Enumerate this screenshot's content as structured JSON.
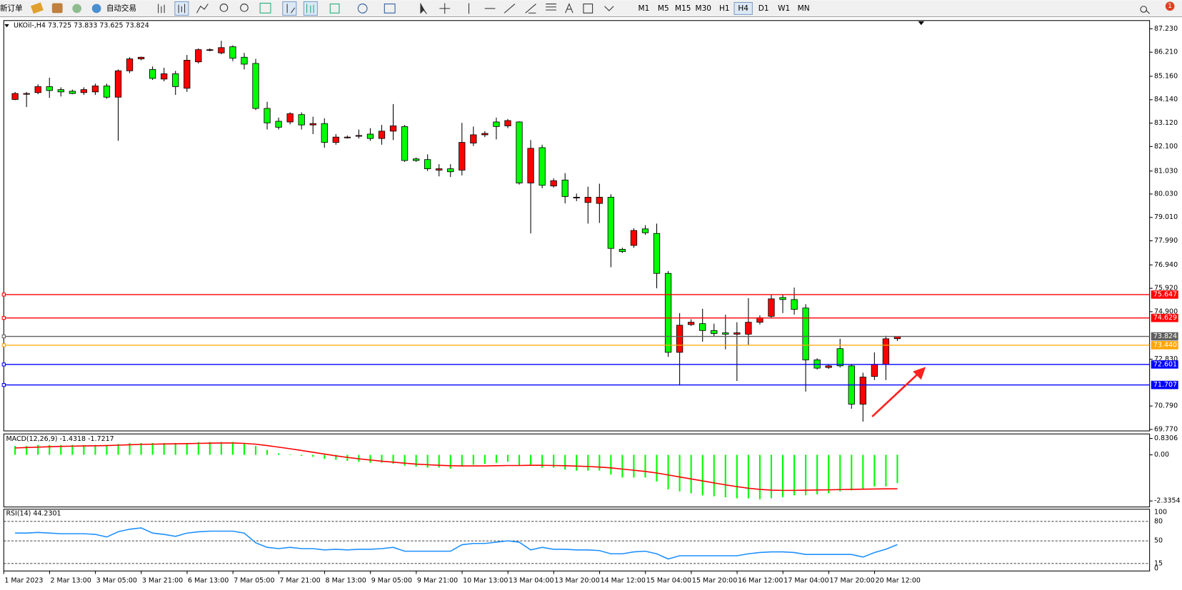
{
  "toolbar": {
    "new_order": "新订单",
    "auto_trading": "自动交易",
    "timeframes": [
      "M1",
      "M5",
      "M15",
      "M30",
      "H1",
      "H4",
      "D1",
      "W1",
      "MN"
    ],
    "active_timeframe": "H4",
    "notifications": "1"
  },
  "chart": {
    "title": "UKOil-,H4 73.725 73.833 73.625 73.824",
    "ylim": [
      69.77,
      87.23
    ],
    "yticks": [
      {
        "value": 87.23,
        "label": "87.230"
      },
      {
        "value": 86.21,
        "label": "86.210"
      },
      {
        "value": 85.16,
        "label": "85.160"
      },
      {
        "value": 84.14,
        "label": "84.140"
      },
      {
        "value": 83.12,
        "label": "83.120"
      },
      {
        "value": 82.1,
        "label": "82.100"
      },
      {
        "value": 81.03,
        "label": "81.030"
      },
      {
        "value": 80.03,
        "label": "80.030"
      },
      {
        "value": 79.01,
        "label": "79.010"
      },
      {
        "value": 77.99,
        "label": "77.990"
      },
      {
        "value": 76.94,
        "label": "76.940"
      },
      {
        "value": 75.92,
        "label": "75.920"
      },
      {
        "value": 74.9,
        "label": "74.900"
      },
      {
        "value": 72.83,
        "label": "72.830"
      },
      {
        "value": 70.79,
        "label": "70.790"
      },
      {
        "value": 69.77,
        "label": "69.770"
      }
    ],
    "x_labels": [
      "1 Mar 2023",
      "2 Mar 13:00",
      "3 Mar 05:00",
      "3 Mar 21:00",
      "6 Mar 13:00",
      "7 Mar 05:00",
      "7 Mar 21:00",
      "8 Mar 13:00",
      "9 Mar 05:00",
      "9 Mar 21:00",
      "10 Mar 13:00",
      "13 Mar 04:00",
      "13 Mar 20:00",
      "14 Mar 12:00",
      "15 Mar 04:00",
      "15 Mar 20:00",
      "16 Mar 12:00",
      "17 Mar 04:00",
      "17 Mar 20:00",
      "20 Mar 12:00"
    ],
    "up_color": "#ff0000",
    "down_color": "#00ff00",
    "candles": [
      {
        "open": 84.15,
        "high": 84.48,
        "low": 84.12,
        "close": 84.41
      },
      {
        "open": 84.41,
        "high": 84.48,
        "low": 83.82,
        "close": 84.41
      },
      {
        "open": 84.45,
        "high": 84.81,
        "low": 84.38,
        "close": 84.71
      },
      {
        "open": 84.71,
        "high": 85.1,
        "low": 84.22,
        "close": 84.54
      },
      {
        "open": 84.58,
        "high": 84.68,
        "low": 84.28,
        "close": 84.48
      },
      {
        "open": 84.51,
        "high": 84.58,
        "low": 84.38,
        "close": 84.41
      },
      {
        "open": 84.45,
        "high": 84.68,
        "low": 84.35,
        "close": 84.58
      },
      {
        "open": 84.48,
        "high": 84.84,
        "low": 84.35,
        "close": 84.74
      },
      {
        "open": 84.74,
        "high": 84.84,
        "low": 84.18,
        "close": 84.25
      },
      {
        "open": 84.25,
        "high": 85.46,
        "low": 82.35,
        "close": 85.4
      },
      {
        "open": 85.4,
        "high": 85.99,
        "low": 85.3,
        "close": 85.92
      },
      {
        "open": 85.92,
        "high": 86.02,
        "low": 85.86,
        "close": 85.99
      },
      {
        "open": 85.46,
        "high": 85.59,
        "low": 85.0,
        "close": 85.07
      },
      {
        "open": 85.04,
        "high": 85.53,
        "low": 84.94,
        "close": 85.27
      },
      {
        "open": 85.27,
        "high": 85.4,
        "low": 84.35,
        "close": 84.71
      },
      {
        "open": 84.64,
        "high": 86.09,
        "low": 84.48,
        "close": 85.86
      },
      {
        "open": 85.79,
        "high": 86.38,
        "low": 85.72,
        "close": 86.32
      },
      {
        "open": 86.32,
        "high": 86.38,
        "low": 86.25,
        "close": 86.32
      },
      {
        "open": 86.18,
        "high": 86.71,
        "low": 86.12,
        "close": 86.41
      },
      {
        "open": 86.45,
        "high": 86.51,
        "low": 85.82,
        "close": 85.95
      },
      {
        "open": 85.99,
        "high": 86.18,
        "low": 85.46,
        "close": 85.69
      },
      {
        "open": 85.72,
        "high": 85.92,
        "low": 83.69,
        "close": 83.76
      },
      {
        "open": 83.76,
        "high": 84.05,
        "low": 82.84,
        "close": 83.13
      },
      {
        "open": 83.2,
        "high": 83.36,
        "low": 82.84,
        "close": 82.94
      },
      {
        "open": 83.17,
        "high": 83.59,
        "low": 83.07,
        "close": 83.53
      },
      {
        "open": 83.49,
        "high": 83.59,
        "low": 82.84,
        "close": 83.04
      },
      {
        "open": 83.04,
        "high": 83.4,
        "low": 82.64,
        "close": 83.1
      },
      {
        "open": 83.1,
        "high": 83.33,
        "low": 82.05,
        "close": 82.28
      },
      {
        "open": 82.28,
        "high": 82.64,
        "low": 82.18,
        "close": 82.51
      },
      {
        "open": 82.51,
        "high": 82.58,
        "low": 82.45,
        "close": 82.51
      },
      {
        "open": 82.58,
        "high": 82.84,
        "low": 82.45,
        "close": 82.58
      },
      {
        "open": 82.64,
        "high": 82.9,
        "low": 82.35,
        "close": 82.45
      },
      {
        "open": 82.45,
        "high": 83.04,
        "low": 82.18,
        "close": 82.77
      },
      {
        "open": 82.77,
        "high": 83.95,
        "low": 82.38,
        "close": 83.0
      },
      {
        "open": 82.97,
        "high": 83.04,
        "low": 81.43,
        "close": 81.49
      },
      {
        "open": 81.56,
        "high": 81.62,
        "low": 81.43,
        "close": 81.49
      },
      {
        "open": 81.53,
        "high": 81.76,
        "low": 81.03,
        "close": 81.13
      },
      {
        "open": 81.07,
        "high": 81.33,
        "low": 80.8,
        "close": 81.13
      },
      {
        "open": 81.13,
        "high": 81.33,
        "low": 80.77,
        "close": 81.0
      },
      {
        "open": 81.07,
        "high": 83.13,
        "low": 80.84,
        "close": 82.28
      },
      {
        "open": 82.25,
        "high": 82.97,
        "low": 82.12,
        "close": 82.61
      },
      {
        "open": 82.61,
        "high": 82.77,
        "low": 82.51,
        "close": 82.67
      },
      {
        "open": 83.17,
        "high": 83.36,
        "low": 82.41,
        "close": 82.97
      },
      {
        "open": 83.0,
        "high": 83.3,
        "low": 82.9,
        "close": 83.23
      },
      {
        "open": 83.17,
        "high": 83.2,
        "low": 80.44,
        "close": 80.51
      },
      {
        "open": 80.51,
        "high": 82.38,
        "low": 78.31,
        "close": 82.02
      },
      {
        "open": 82.05,
        "high": 82.18,
        "low": 80.28,
        "close": 80.41
      },
      {
        "open": 80.38,
        "high": 80.71,
        "low": 80.31,
        "close": 80.61
      },
      {
        "open": 80.64,
        "high": 80.94,
        "low": 79.62,
        "close": 79.92
      },
      {
        "open": 79.89,
        "high": 80.05,
        "low": 79.72,
        "close": 79.89
      },
      {
        "open": 79.66,
        "high": 80.35,
        "low": 78.74,
        "close": 79.89
      },
      {
        "open": 79.62,
        "high": 80.48,
        "low": 78.77,
        "close": 79.89
      },
      {
        "open": 79.89,
        "high": 80.02,
        "low": 76.84,
        "close": 77.66
      },
      {
        "open": 77.62,
        "high": 77.69,
        "low": 77.46,
        "close": 77.52
      },
      {
        "open": 77.79,
        "high": 78.54,
        "low": 77.69,
        "close": 78.44
      },
      {
        "open": 78.51,
        "high": 78.67,
        "low": 78.25,
        "close": 78.34
      },
      {
        "open": 78.31,
        "high": 78.74,
        "low": 75.92,
        "close": 76.57
      },
      {
        "open": 76.57,
        "high": 76.67,
        "low": 72.93,
        "close": 73.13
      },
      {
        "open": 73.13,
        "high": 74.84,
        "low": 71.69,
        "close": 74.31
      },
      {
        "open": 74.34,
        "high": 74.57,
        "low": 74.28,
        "close": 74.44
      },
      {
        "open": 74.38,
        "high": 75.03,
        "low": 73.59,
        "close": 74.08
      },
      {
        "open": 74.08,
        "high": 74.38,
        "low": 73.82,
        "close": 73.95
      },
      {
        "open": 73.98,
        "high": 74.77,
        "low": 73.26,
        "close": 73.92
      },
      {
        "open": 73.92,
        "high": 74.44,
        "low": 71.88,
        "close": 73.98
      },
      {
        "open": 73.92,
        "high": 75.49,
        "low": 73.46,
        "close": 74.44
      },
      {
        "open": 74.44,
        "high": 74.74,
        "low": 74.34,
        "close": 74.64
      },
      {
        "open": 74.7,
        "high": 75.66,
        "low": 74.64,
        "close": 75.46
      },
      {
        "open": 75.52,
        "high": 75.66,
        "low": 74.84,
        "close": 75.43
      },
      {
        "open": 75.43,
        "high": 75.95,
        "low": 74.77,
        "close": 75.0
      },
      {
        "open": 75.06,
        "high": 75.23,
        "low": 71.42,
        "close": 72.8
      },
      {
        "open": 72.8,
        "high": 72.87,
        "low": 72.38,
        "close": 72.44
      },
      {
        "open": 72.47,
        "high": 72.6,
        "low": 72.41,
        "close": 72.54
      },
      {
        "open": 73.29,
        "high": 73.72,
        "low": 72.47,
        "close": 72.54
      },
      {
        "open": 72.54,
        "high": 72.6,
        "low": 70.67,
        "close": 70.87
      },
      {
        "open": 70.87,
        "high": 72.24,
        "low": 70.11,
        "close": 72.05
      },
      {
        "open": 72.08,
        "high": 73.13,
        "low": 71.92,
        "close": 72.6
      },
      {
        "open": 72.6,
        "high": 73.85,
        "low": 71.92,
        "close": 73.72
      },
      {
        "open": 73.725,
        "high": 73.833,
        "low": 73.625,
        "close": 73.824
      }
    ],
    "levels": [
      {
        "value": 75.647,
        "color": "#ff0000"
      },
      {
        "value": 74.629,
        "color": "#ff0000"
      },
      {
        "value": 73.824,
        "color": "#606060"
      },
      {
        "value": {
          "value": 73.44,
          "label": "73.440"
        },
        "color": "#ffa500"
      },
      {
        "value": 72.601,
        "color": "#0000ff"
      },
      {
        "value": 71.707,
        "color": "#0000ff"
      }
    ]
  },
  "macd": {
    "title": "MACD(12,26,9) -1.4318 -1.7217",
    "ylim": [
      -2.3354,
      0.8306
    ],
    "yticks": [
      0.8306,
      {
        "value": 0,
        "label": "0.00"
      },
      -2.3354
    ],
    "histogram_color": "#00ff00",
    "signal_color": "#ff0000",
    "histogram": [
      0.45,
      0.45,
      0.5,
      0.5,
      0.5,
      0.5,
      0.5,
      0.5,
      0.5,
      0.55,
      0.6,
      0.6,
      0.6,
      0.6,
      0.6,
      0.6,
      0.65,
      0.65,
      0.65,
      0.65,
      0.6,
      0.45,
      0.25,
      0.08,
      0.03,
      -0.05,
      -0.1,
      -0.2,
      -0.25,
      -0.3,
      -0.35,
      -0.4,
      -0.4,
      -0.45,
      -0.55,
      -0.6,
      -0.65,
      -0.65,
      -0.7,
      -0.6,
      -0.5,
      -0.45,
      -0.4,
      -0.35,
      -0.55,
      -0.5,
      -0.65,
      -0.65,
      -0.75,
      -0.8,
      -0.8,
      -0.8,
      -1.0,
      -1.15,
      -1.15,
      -1.15,
      -1.35,
      -1.75,
      -1.85,
      -1.95,
      -2.05,
      -2.1,
      -2.15,
      -2.2,
      -2.2,
      -2.25,
      -2.2,
      -2.15,
      -2.05,
      -2.05,
      -2.0,
      -1.95,
      -1.85,
      -1.8,
      -1.75,
      -1.6,
      -1.6,
      -1.4318
    ],
    "signal": [
      0.35,
      0.37,
      0.39,
      0.41,
      0.43,
      0.44,
      0.45,
      0.46,
      0.47,
      0.49,
      0.51,
      0.53,
      0.54,
      0.55,
      0.56,
      0.57,
      0.58,
      0.59,
      0.6,
      0.6,
      0.58,
      0.54,
      0.47,
      0.39,
      0.31,
      0.22,
      0.13,
      0.04,
      -0.05,
      -0.13,
      -0.2,
      -0.26,
      -0.32,
      -0.37,
      -0.42,
      -0.47,
      -0.5,
      -0.53,
      -0.55,
      -0.56,
      -0.56,
      -0.56,
      -0.55,
      -0.54,
      -0.54,
      -0.53,
      -0.53,
      -0.54,
      -0.55,
      -0.57,
      -0.59,
      -0.62,
      -0.66,
      -0.72,
      -0.78,
      -0.84,
      -0.92,
      -1.02,
      -1.12,
      -1.22,
      -1.32,
      -1.42,
      -1.52,
      -1.61,
      -1.69,
      -1.75,
      -1.79,
      -1.8,
      -1.8,
      -1.79,
      -1.78,
      -1.77,
      -1.76,
      -1.75,
      -1.74,
      -1.73,
      -1.72,
      -1.7217
    ]
  },
  "rsi": {
    "title": "RSI(14) 44.2301",
    "ylim": [
      0,
      100
    ],
    "yticks": [
      100,
      80,
      50,
      15,
      0
    ],
    "color": "#1e90ff",
    "values": [
      62,
      62,
      63,
      62,
      61,
      61,
      61,
      60,
      56,
      64,
      68,
      70,
      62,
      60,
      57,
      62,
      64,
      65,
      65,
      65,
      62,
      47,
      40,
      38,
      40,
      38,
      38,
      36,
      37,
      36,
      37,
      37,
      38,
      40,
      34,
      34,
      34,
      34,
      34,
      44,
      46,
      46,
      48,
      50,
      48,
      36,
      40,
      37,
      37,
      36,
      36,
      35,
      30,
      30,
      33,
      34,
      30,
      22,
      27,
      27,
      27,
      27,
      27,
      27,
      30,
      32,
      33,
      33,
      32,
      29,
      29,
      29,
      29,
      29,
      25,
      32,
      37,
      44.2301
    ]
  }
}
